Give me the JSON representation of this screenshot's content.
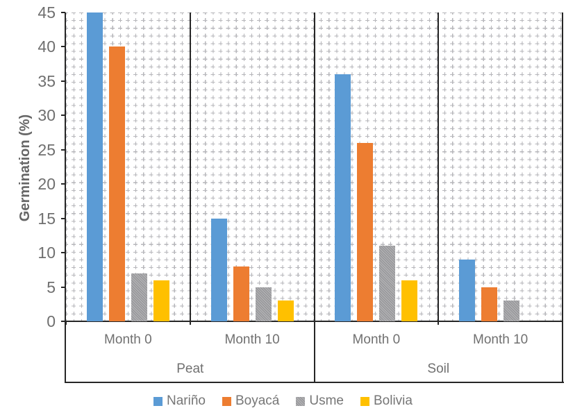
{
  "chart_data": {
    "type": "bar",
    "title": "",
    "ylabel": "Germination (%)",
    "ylim": [
      0,
      45
    ],
    "ytick_interval": 5,
    "yticks": [
      0,
      5,
      10,
      15,
      20,
      25,
      30,
      35,
      40,
      45
    ],
    "grid": "dotted-dash pattern fill over plot area",
    "legend_position": "bottom",
    "panels": [
      "Peat",
      "Soil"
    ],
    "categories": [
      {
        "month": "Month 0",
        "panel": "Peat"
      },
      {
        "month": "Month 10",
        "panel": "Peat"
      },
      {
        "month": "Month 0",
        "panel": "Soil"
      },
      {
        "month": "Month 10",
        "panel": "Soil"
      }
    ],
    "series": [
      {
        "name": "Nariño",
        "color": "#5B9BD5",
        "texture": "solid",
        "values": [
          45,
          15,
          36,
          9
        ]
      },
      {
        "name": "Boyacá",
        "color": "#ED7D31",
        "texture": "solid",
        "values": [
          40,
          8,
          26,
          5
        ]
      },
      {
        "name": "Usme",
        "color": "#ABABAB",
        "texture": "dotted",
        "values": [
          7,
          5,
          11,
          3
        ]
      },
      {
        "name": "Bolivia",
        "color": "#FFC000",
        "texture": "solid",
        "values": [
          6,
          3,
          6,
          0
        ]
      }
    ],
    "axis_color": "#262626",
    "label_color": "#707070"
  }
}
